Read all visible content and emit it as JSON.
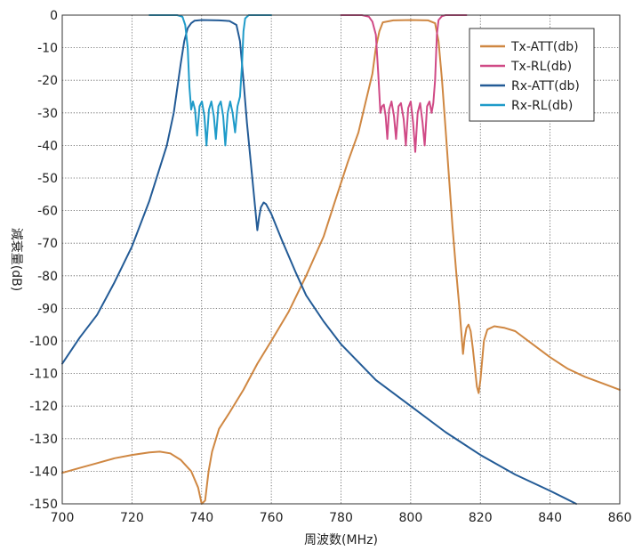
{
  "chart_data": {
    "type": "line",
    "xlabel": "周波数(MHz)",
    "ylabel": "減衰量(dB)",
    "xlim": [
      700,
      860
    ],
    "ylim": [
      -150,
      0
    ],
    "xticks": [
      "700",
      "720",
      "740",
      "760",
      "780",
      "800",
      "820",
      "840",
      "860"
    ],
    "yticks": [
      "0",
      "-10",
      "-20",
      "-30",
      "-40",
      "-50",
      "-60",
      "-70",
      "-80",
      "-90",
      "-100",
      "-110",
      "-120",
      "-130",
      "-140",
      "-150"
    ],
    "grid": true,
    "legend_position": "top-right",
    "series": [
      {
        "name": "Tx-ATT(db)",
        "color": "#cf8742",
        "points": [
          [
            700,
            -140.5
          ],
          [
            705,
            -139
          ],
          [
            710,
            -137.5
          ],
          [
            715,
            -136
          ],
          [
            720,
            -135
          ],
          [
            725,
            -134.2
          ],
          [
            728,
            -134
          ],
          [
            731,
            -134.5
          ],
          [
            734,
            -136.5
          ],
          [
            737,
            -140
          ],
          [
            739,
            -145
          ],
          [
            740,
            -150
          ],
          [
            741,
            -149
          ],
          [
            742,
            -140
          ],
          [
            743,
            -134
          ],
          [
            745,
            -127
          ],
          [
            748,
            -122
          ],
          [
            752,
            -115
          ],
          [
            756,
            -107
          ],
          [
            760,
            -100
          ],
          [
            765,
            -91
          ],
          [
            770,
            -80
          ],
          [
            775,
            -68
          ],
          [
            778,
            -58
          ],
          [
            782,
            -45
          ],
          [
            785,
            -36
          ],
          [
            787,
            -27
          ],
          [
            789,
            -18
          ],
          [
            790,
            -10
          ],
          [
            791,
            -5
          ],
          [
            792,
            -2.2
          ],
          [
            795,
            -1.6
          ],
          [
            800,
            -1.5
          ],
          [
            805,
            -1.6
          ],
          [
            807,
            -2.5
          ],
          [
            808,
            -8
          ],
          [
            809,
            -20
          ],
          [
            810,
            -35
          ],
          [
            811,
            -50
          ],
          [
            812,
            -65
          ],
          [
            813,
            -78
          ],
          [
            814,
            -90
          ],
          [
            815,
            -104
          ],
          [
            815.5,
            -99
          ],
          [
            816,
            -96
          ],
          [
            816.6,
            -95
          ],
          [
            817.2,
            -97
          ],
          [
            817.8,
            -102
          ],
          [
            818.4,
            -108
          ],
          [
            819,
            -114
          ],
          [
            819.5,
            -116
          ],
          [
            820,
            -112
          ],
          [
            821,
            -100
          ],
          [
            822,
            -96.5
          ],
          [
            824,
            -95.5
          ],
          [
            827,
            -96
          ],
          [
            830,
            -97
          ],
          [
            835,
            -101
          ],
          [
            840,
            -105
          ],
          [
            845,
            -108.5
          ],
          [
            850,
            -111
          ],
          [
            855,
            -113
          ],
          [
            860,
            -115
          ]
        ]
      },
      {
        "name": "Tx-RL(db)",
        "color": "#d04a86",
        "points": [
          [
            780,
            0
          ],
          [
            786,
            0
          ],
          [
            788,
            -0.5
          ],
          [
            789,
            -2
          ],
          [
            790,
            -6
          ],
          [
            790.7,
            -18
          ],
          [
            791.3,
            -30
          ],
          [
            791.8,
            -28
          ],
          [
            792.3,
            -27.5
          ],
          [
            792.8,
            -31
          ],
          [
            793.3,
            -38
          ],
          [
            793.8,
            -29
          ],
          [
            794.5,
            -26.5
          ],
          [
            795.2,
            -31
          ],
          [
            795.8,
            -38
          ],
          [
            796.5,
            -28
          ],
          [
            797.2,
            -27
          ],
          [
            798,
            -32
          ],
          [
            798.6,
            -40
          ],
          [
            799.3,
            -28.5
          ],
          [
            800,
            -26.5
          ],
          [
            800.7,
            -33
          ],
          [
            801.3,
            -42
          ],
          [
            802,
            -30
          ],
          [
            802.7,
            -27
          ],
          [
            803.4,
            -33
          ],
          [
            804,
            -40
          ],
          [
            804.7,
            -28
          ],
          [
            805.4,
            -26.5
          ],
          [
            806,
            -30
          ],
          [
            806.5,
            -27
          ],
          [
            807,
            -20
          ],
          [
            807.5,
            -6
          ],
          [
            808,
            -1.5
          ],
          [
            809,
            -0.3
          ],
          [
            810,
            0
          ],
          [
            816,
            0
          ]
        ]
      },
      {
        "name": "Rx-ATT(db)",
        "color": "#235b96",
        "points": [
          [
            700,
            -107
          ],
          [
            705,
            -99
          ],
          [
            710,
            -92
          ],
          [
            715,
            -82
          ],
          [
            720,
            -71
          ],
          [
            725,
            -57
          ],
          [
            730,
            -40
          ],
          [
            732,
            -30
          ],
          [
            734,
            -15
          ],
          [
            735,
            -8
          ],
          [
            736,
            -4
          ],
          [
            737,
            -2.5
          ],
          [
            738,
            -1.7
          ],
          [
            740,
            -1.5
          ],
          [
            745,
            -1.6
          ],
          [
            748,
            -1.8
          ],
          [
            750,
            -3
          ],
          [
            751,
            -8
          ],
          [
            752,
            -20
          ],
          [
            753,
            -33
          ],
          [
            754,
            -44
          ],
          [
            755,
            -55
          ],
          [
            756,
            -66
          ],
          [
            756.5,
            -62
          ],
          [
            757,
            -59
          ],
          [
            757.8,
            -57.5
          ],
          [
            758.5,
            -58
          ],
          [
            760,
            -61
          ],
          [
            763,
            -69
          ],
          [
            767,
            -79
          ],
          [
            770,
            -86
          ],
          [
            775,
            -94
          ],
          [
            780,
            -101
          ],
          [
            790,
            -112
          ],
          [
            800,
            -120
          ],
          [
            810,
            -128
          ],
          [
            820,
            -135
          ],
          [
            830,
            -141
          ],
          [
            840,
            -146
          ],
          [
            847.5,
            -150
          ]
        ]
      },
      {
        "name": "Rx-RL(db)",
        "color": "#1f9bc9",
        "points": [
          [
            725,
            0
          ],
          [
            733,
            0
          ],
          [
            734.5,
            -0.5
          ],
          [
            735.3,
            -3
          ],
          [
            736,
            -10
          ],
          [
            736.5,
            -22
          ],
          [
            737,
            -29
          ],
          [
            737.5,
            -26.5
          ],
          [
            738.1,
            -29
          ],
          [
            738.7,
            -37
          ],
          [
            739.4,
            -28
          ],
          [
            740.1,
            -26.5
          ],
          [
            740.8,
            -31
          ],
          [
            741.4,
            -40
          ],
          [
            742.1,
            -29
          ],
          [
            742.8,
            -26.5
          ],
          [
            743.5,
            -31
          ],
          [
            744.1,
            -38
          ],
          [
            744.8,
            -28
          ],
          [
            745.5,
            -26.5
          ],
          [
            746.2,
            -31
          ],
          [
            746.8,
            -40
          ],
          [
            747.5,
            -30
          ],
          [
            748.2,
            -26.5
          ],
          [
            748.9,
            -30
          ],
          [
            749.6,
            -36
          ],
          [
            750.3,
            -28
          ],
          [
            751,
            -25
          ],
          [
            751.6,
            -15
          ],
          [
            752,
            -5
          ],
          [
            752.5,
            -1
          ],
          [
            753.5,
            0
          ],
          [
            760,
            0
          ]
        ]
      }
    ]
  }
}
